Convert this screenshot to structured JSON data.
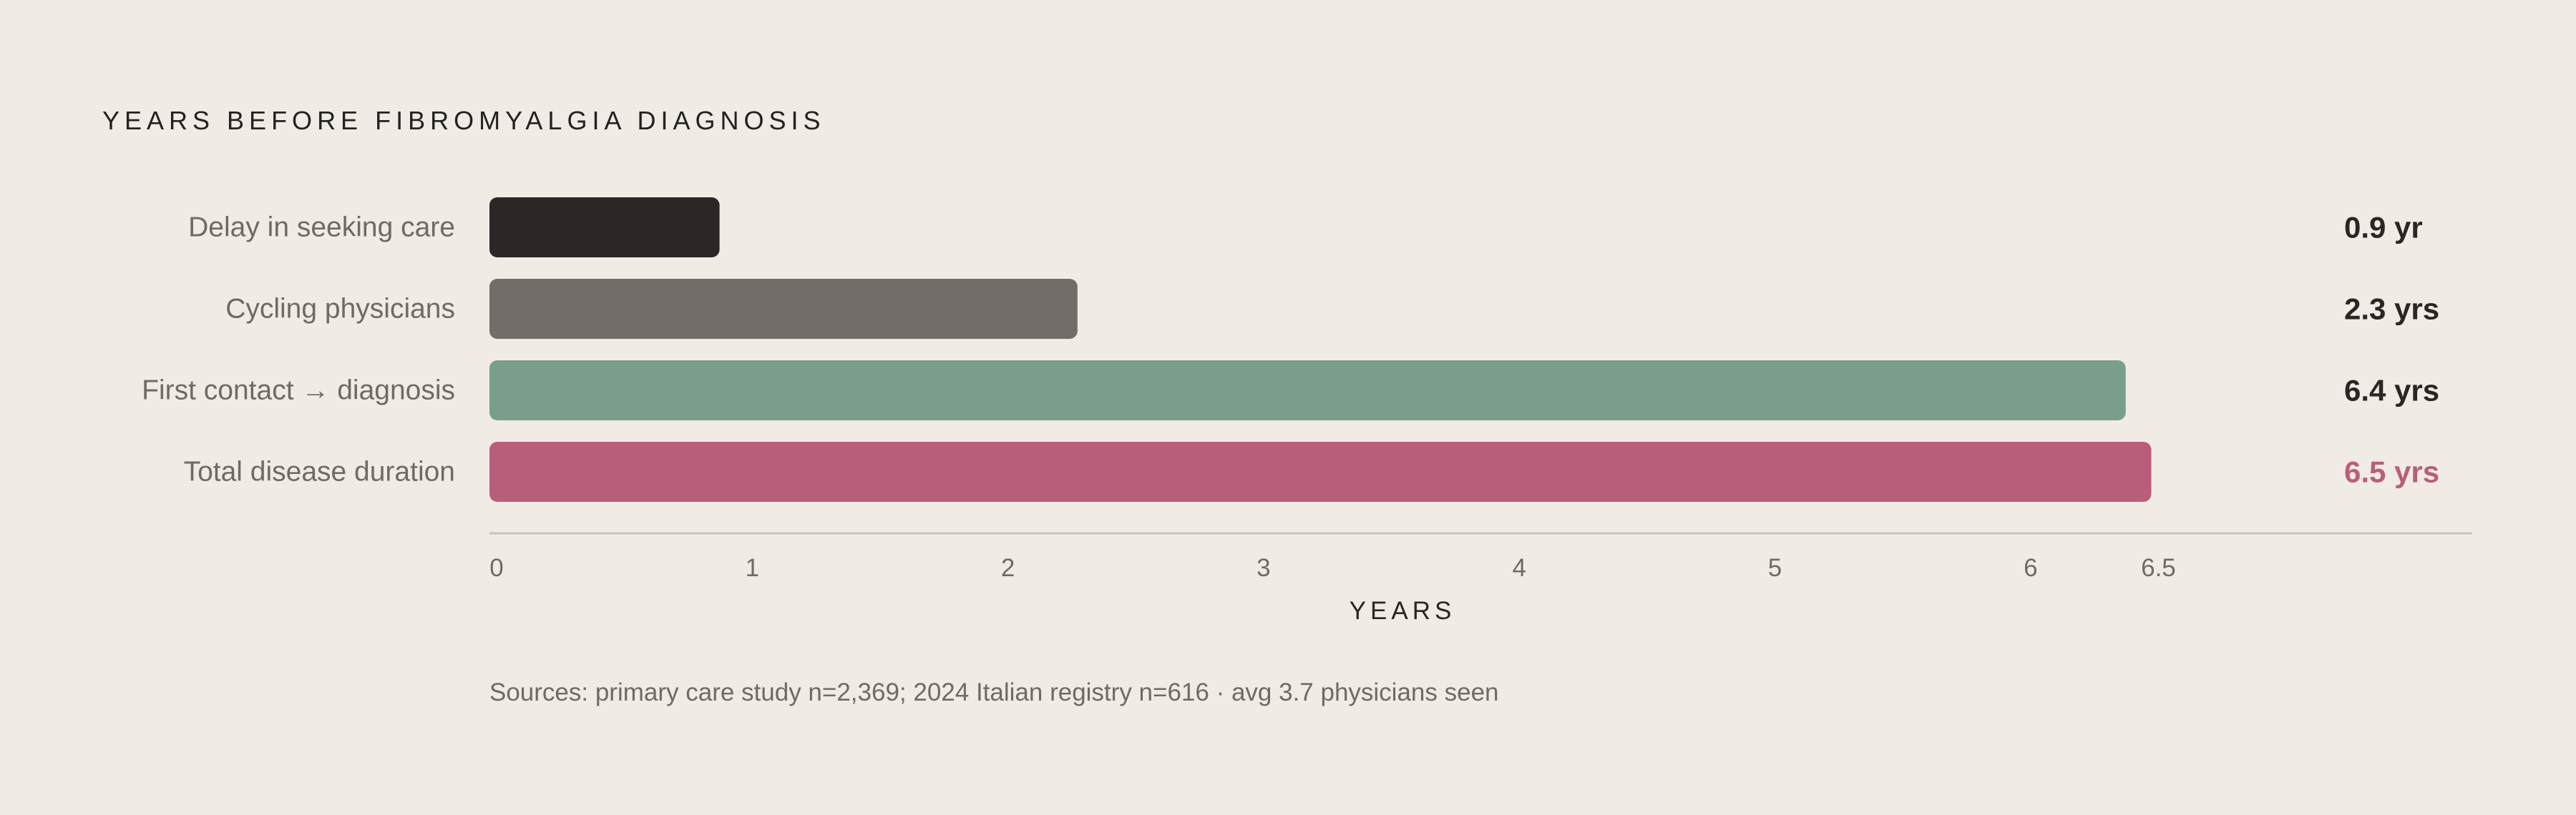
{
  "chart_data": {
    "type": "bar",
    "orientation": "horizontal",
    "title": "YEARS BEFORE FIBROMYALGIA DIAGNOSIS",
    "categories": [
      "Delay in seeking care",
      "Cycling physicians",
      "First contact → diagnosis",
      "Total disease duration"
    ],
    "values": [
      0.9,
      2.3,
      6.4,
      6.5
    ],
    "value_labels": [
      "0.9 yr",
      "2.3 yrs",
      "6.4 yrs",
      "6.5 yrs"
    ],
    "colors": [
      "#2c2725",
      "#736d69",
      "#7a9e8c",
      "#b95e79"
    ],
    "value_label_colors": [
      "#2b2624",
      "#2b2624",
      "#2b2624",
      "#b95e79"
    ],
    "xlabel": "YEARS",
    "xticks": [
      0,
      1,
      2,
      3,
      4,
      5,
      6,
      6.5
    ],
    "xtick_labels": [
      "0",
      "1",
      "2",
      "3",
      "4",
      "5",
      "6",
      "6.5"
    ],
    "xlim": [
      0,
      7.25
    ],
    "grid": false,
    "note": "Sources: primary care study n=2,369; 2024 Italian registry n=616  ·  avg 3.7 physicians seen"
  },
  "colors": {
    "background": "#f1ebe5",
    "axis_line": "#c9c3be",
    "accent": "#b95e79"
  }
}
